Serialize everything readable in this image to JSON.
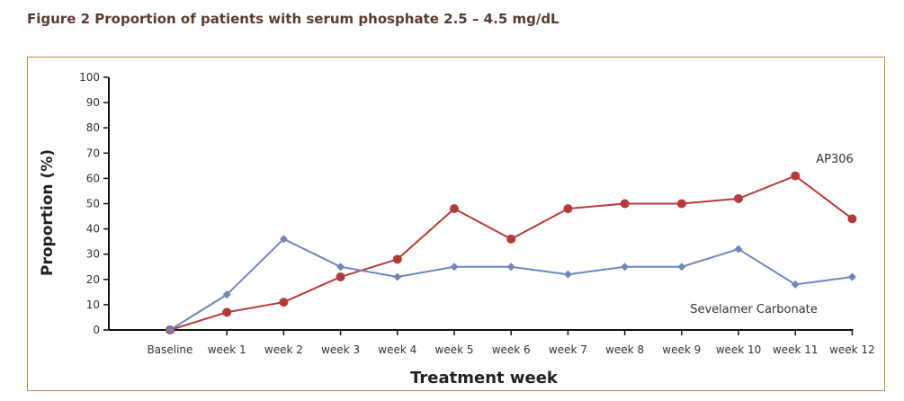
{
  "figure_title": "Figure 2 Proportion of patients with serum phosphate 2.5 – 4.5 mg/dL",
  "colors": {
    "frame": "#c98545",
    "ap306": "#b8393a",
    "sevelamer": "#6e86bd",
    "axis": "#111111"
  },
  "chart_data": {
    "type": "line",
    "title": "",
    "xlabel": "Treatment week",
    "ylabel": "Proportion (%)",
    "ylim": [
      0,
      100
    ],
    "yticks": [
      0,
      10,
      20,
      30,
      40,
      50,
      60,
      70,
      80,
      90,
      100
    ],
    "categories": [
      "Baseline",
      "week 1",
      "week 2",
      "week 3",
      "week 4",
      "week 5",
      "week 6",
      "week 7",
      "week 8",
      "week 9",
      "week 10",
      "week 11",
      "week 12"
    ],
    "grid": false,
    "series": [
      {
        "name": "AP306",
        "color": "#b8393a",
        "marker": "circle",
        "values": [
          0,
          7,
          11,
          21,
          28,
          48,
          36,
          48,
          50,
          50,
          52,
          61,
          44
        ]
      },
      {
        "name": "Sevelamer Carbonate",
        "color": "#6e86bd",
        "marker": "diamond",
        "values": [
          0,
          14,
          36,
          25,
          21,
          25,
          25,
          22,
          25,
          25,
          32,
          18,
          21
        ]
      }
    ]
  }
}
